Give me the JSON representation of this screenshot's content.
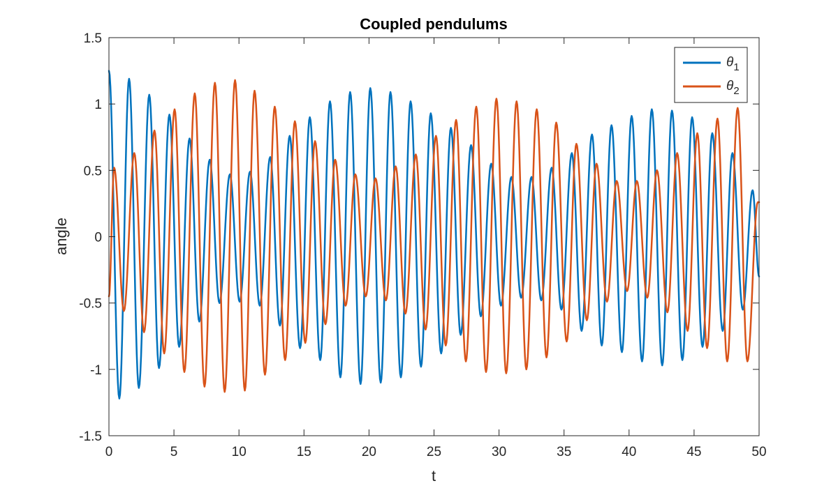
{
  "chart_data": {
    "type": "line",
    "title": "Coupled pendulums",
    "xlabel": "t",
    "ylabel": "angle",
    "xlim": [
      0,
      50
    ],
    "ylim": [
      -1.5,
      1.5
    ],
    "xticks": [
      0,
      5,
      10,
      15,
      20,
      25,
      30,
      35,
      40,
      45,
      50
    ],
    "xtick_labels": [
      "0",
      "5",
      "10",
      "15",
      "20",
      "25",
      "30",
      "35",
      "40",
      "45",
      "50"
    ],
    "yticks": [
      -1.5,
      -1,
      -0.5,
      0,
      0.5,
      1,
      1.5
    ],
    "ytick_labels": [
      "-1.5",
      "-1",
      "-0.5",
      "0",
      "0.5",
      "1",
      "1.5"
    ],
    "grid": false,
    "legend_position": "top-right",
    "series": [
      {
        "name": "θ",
        "name_subscript": "1",
        "color": "#0072BD",
        "line_width": 2.5,
        "x": [
          0,
          0.8,
          1.55,
          2.3,
          3.1,
          3.85,
          4.65,
          5.4,
          6.2,
          6.95,
          7.75,
          8.5,
          9.3,
          10.05,
          10.85,
          11.6,
          12.4,
          13.15,
          13.9,
          14.7,
          15.45,
          16.25,
          17.0,
          17.8,
          18.55,
          19.35,
          20.1,
          20.9,
          21.65,
          22.45,
          23.2,
          24.0,
          24.75,
          25.55,
          26.3,
          27.05,
          27.85,
          28.6,
          29.4,
          30.15,
          30.95,
          31.7,
          32.5,
          33.25,
          34.05,
          34.8,
          35.6,
          36.35,
          37.15,
          37.9,
          38.65,
          39.45,
          40.2,
          41.0,
          41.75,
          42.55,
          43.3,
          44.1,
          44.85,
          45.65,
          46.4,
          47.2,
          47.95,
          48.75,
          49.5,
          50.0
        ],
        "y": [
          1.25,
          -1.22,
          1.19,
          -1.14,
          1.07,
          -0.99,
          0.92,
          -0.83,
          0.74,
          -0.64,
          0.58,
          -0.5,
          0.47,
          -0.49,
          0.49,
          -0.52,
          0.6,
          -0.67,
          0.76,
          -0.84,
          0.9,
          -0.93,
          1.02,
          -1.06,
          1.09,
          -1.11,
          1.12,
          -1.1,
          1.09,
          -1.06,
          1.02,
          -0.98,
          0.93,
          -0.88,
          0.82,
          -0.74,
          0.69,
          -0.6,
          0.55,
          -0.52,
          0.45,
          -0.46,
          0.45,
          -0.48,
          0.52,
          -0.55,
          0.63,
          -0.71,
          0.77,
          -0.82,
          0.84,
          -0.87,
          0.91,
          -0.94,
          0.96,
          -0.97,
          0.95,
          -0.93,
          0.9,
          -0.83,
          0.78,
          -0.71,
          0.63,
          -0.55,
          0.35,
          -0.3
        ]
      },
      {
        "name": "θ",
        "name_subscript": "2",
        "color": "#D95319",
        "line_width": 2.5,
        "x": [
          0,
          0.4,
          1.15,
          1.95,
          2.7,
          3.5,
          4.25,
          5.05,
          5.8,
          6.6,
          7.35,
          8.15,
          8.9,
          9.7,
          10.45,
          11.2,
          12.0,
          12.75,
          13.55,
          14.3,
          15.1,
          15.85,
          16.65,
          17.4,
          18.2,
          18.95,
          19.75,
          20.5,
          21.3,
          22.05,
          22.8,
          23.6,
          24.35,
          25.15,
          25.9,
          26.7,
          27.45,
          28.25,
          29.0,
          29.8,
          30.55,
          31.35,
          32.1,
          32.9,
          33.65,
          34.4,
          35.2,
          35.95,
          36.75,
          37.5,
          38.3,
          39.05,
          39.85,
          40.6,
          41.4,
          42.15,
          42.95,
          43.7,
          44.5,
          45.25,
          46.0,
          46.8,
          47.55,
          48.35,
          49.1,
          49.9,
          50.0
        ],
        "y": [
          -0.45,
          0.52,
          -0.56,
          0.63,
          -0.72,
          0.8,
          -0.88,
          0.96,
          -1.02,
          1.08,
          -1.13,
          1.16,
          -1.17,
          1.18,
          -1.16,
          1.1,
          -1.04,
          0.98,
          -0.93,
          0.87,
          -0.8,
          0.72,
          -0.66,
          0.58,
          -0.52,
          0.47,
          -0.45,
          0.44,
          -0.48,
          0.53,
          -0.58,
          0.62,
          -0.7,
          0.76,
          -0.82,
          0.88,
          -0.94,
          0.98,
          -1.02,
          1.04,
          -1.03,
          1.02,
          -1.0,
          0.96,
          -0.91,
          0.86,
          -0.79,
          0.7,
          -0.63,
          0.55,
          -0.49,
          0.42,
          -0.41,
          0.42,
          -0.46,
          0.5,
          -0.57,
          0.63,
          -0.71,
          0.78,
          -0.84,
          0.89,
          -0.94,
          0.97,
          -0.94,
          0.26,
          0.26
        ]
      }
    ]
  }
}
